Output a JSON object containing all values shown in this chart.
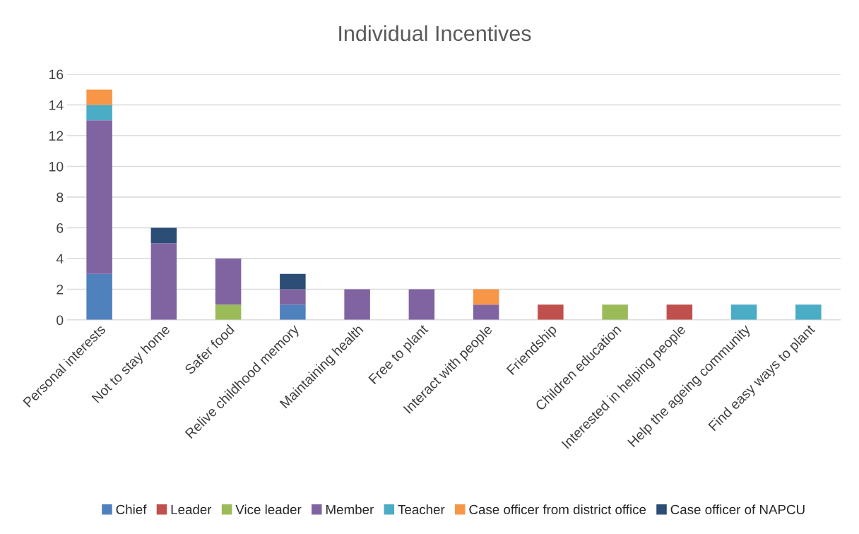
{
  "chart_data": {
    "type": "bar",
    "title": "Individual Incentives",
    "stacked": true,
    "categories": [
      "Personal interests",
      "Not to stay home",
      "Safer food",
      "Relive childhood memory",
      "Maintaining health",
      "Free to plant",
      "Interact with people",
      "Friendship",
      "Children education",
      "Interested in helping people",
      "Help the ageing community",
      "Find easy ways to plant"
    ],
    "series": [
      {
        "name": "Chief",
        "color": "#4f81bd",
        "values": [
          3,
          0,
          0,
          1,
          0,
          0,
          0,
          0,
          0,
          0,
          0,
          0
        ]
      },
      {
        "name": "Leader",
        "color": "#c0504d",
        "values": [
          0,
          0,
          0,
          0,
          0,
          0,
          0,
          1,
          0,
          1,
          0,
          0
        ]
      },
      {
        "name": "Vice leader",
        "color": "#9bbb59",
        "values": [
          0,
          0,
          1,
          0,
          0,
          0,
          0,
          0,
          1,
          0,
          0,
          0
        ]
      },
      {
        "name": "Member",
        "color": "#8064a2",
        "values": [
          10,
          5,
          3,
          1,
          2,
          2,
          1,
          0,
          0,
          0,
          0,
          0
        ]
      },
      {
        "name": "Teacher",
        "color": "#4bacc6",
        "values": [
          1,
          0,
          0,
          0,
          0,
          0,
          0,
          0,
          0,
          0,
          1,
          1
        ]
      },
      {
        "name": "Case officer from district office",
        "color": "#f79646",
        "values": [
          1,
          0,
          0,
          0,
          0,
          0,
          1,
          0,
          0,
          0,
          0,
          0
        ]
      },
      {
        "name": "Case officer of NAPCU",
        "color": "#2c4d75",
        "values": [
          0,
          1,
          0,
          1,
          0,
          0,
          0,
          0,
          0,
          0,
          0,
          0
        ]
      }
    ],
    "ylim": [
      0,
      16
    ],
    "yticks": [
      0,
      2,
      4,
      6,
      8,
      10,
      12,
      14,
      16
    ],
    "grid": "y",
    "legend": "bottom"
  }
}
